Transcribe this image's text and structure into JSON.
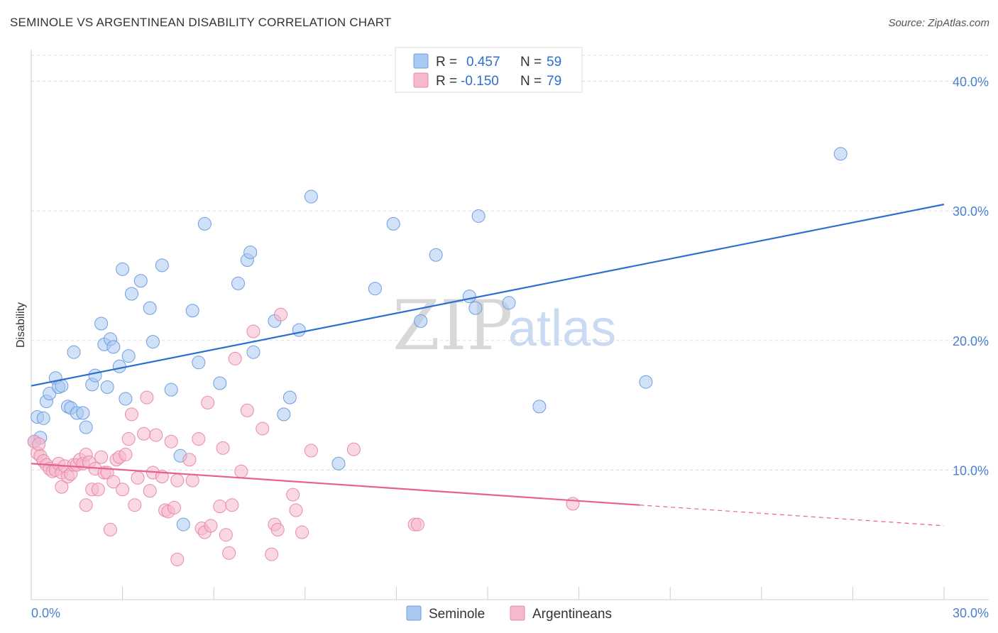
{
  "header": {
    "title": "SEMINOLE VS ARGENTINEAN DISABILITY CORRELATION CHART",
    "source": "Source: ZipAtlas.com"
  },
  "watermark": {
    "zip": "ZIP",
    "atlas": "atlas"
  },
  "legend": {
    "r_label": "R =",
    "n_label": "N =",
    "rows": [
      {
        "r": "0.457",
        "n": "59",
        "color": "#a9c8f2"
      },
      {
        "r": "-0.150",
        "n": "79",
        "color": "#f6b8cc"
      }
    ]
  },
  "bottom_legend": [
    {
      "label": "Seminole",
      "color": "#a9c8f2"
    },
    {
      "label": "Argentineans",
      "color": "#f6b8cc"
    }
  ],
  "colors": {
    "seminole_fill": "#a9c8f2",
    "seminole_stroke": "#6d9ee0",
    "seminole_line": "#2a6fd0",
    "argentinean_fill": "#f6b8cc",
    "argentinean_stroke": "#e88aa9",
    "argentinean_line": "#e8608f"
  },
  "chart_data": {
    "type": "scatter",
    "title": "SEMINOLE VS ARGENTINEAN DISABILITY CORRELATION CHART",
    "xlabel": "",
    "ylabel": "Disability",
    "xlim": [
      0,
      30
    ],
    "ylim": [
      0,
      42
    ],
    "x_tick_labels": [
      "0.0%",
      "30.0%"
    ],
    "y_ticks": [
      10,
      20,
      30,
      40
    ],
    "y_tick_labels": [
      "10.0%",
      "20.0%",
      "30.0%",
      "40.0%"
    ],
    "grid": true,
    "legend_position": "top-center",
    "series": [
      {
        "name": "Seminole",
        "r": 0.457,
        "n": 59,
        "trend": {
          "x": [
            0,
            30
          ],
          "y": [
            16.5,
            30.5
          ]
        },
        "points": [
          [
            0.1,
            12.2
          ],
          [
            0.2,
            14.1
          ],
          [
            0.4,
            14.0
          ],
          [
            0.5,
            15.3
          ],
          [
            0.6,
            15.9
          ],
          [
            0.8,
            17.1
          ],
          [
            0.9,
            16.4
          ],
          [
            1.0,
            16.5
          ],
          [
            1.2,
            14.9
          ],
          [
            1.3,
            14.8
          ],
          [
            1.4,
            19.1
          ],
          [
            1.5,
            14.4
          ],
          [
            1.7,
            14.4
          ],
          [
            1.8,
            13.3
          ],
          [
            2.0,
            16.6
          ],
          [
            2.1,
            17.3
          ],
          [
            2.3,
            21.3
          ],
          [
            2.4,
            19.7
          ],
          [
            2.5,
            16.4
          ],
          [
            2.6,
            20.1
          ],
          [
            2.7,
            19.5
          ],
          [
            2.9,
            18.0
          ],
          [
            3.0,
            25.5
          ],
          [
            3.1,
            15.5
          ],
          [
            3.2,
            18.8
          ],
          [
            3.3,
            23.6
          ],
          [
            3.6,
            24.6
          ],
          [
            3.9,
            22.5
          ],
          [
            4.0,
            19.9
          ],
          [
            4.3,
            25.8
          ],
          [
            4.6,
            16.2
          ],
          [
            4.9,
            11.1
          ],
          [
            5.0,
            5.8
          ],
          [
            5.3,
            22.3
          ],
          [
            5.5,
            18.3
          ],
          [
            5.7,
            29.0
          ],
          [
            6.2,
            16.7
          ],
          [
            6.8,
            24.4
          ],
          [
            7.1,
            26.2
          ],
          [
            7.2,
            26.8
          ],
          [
            7.3,
            19.1
          ],
          [
            8.0,
            21.5
          ],
          [
            8.3,
            14.3
          ],
          [
            8.5,
            15.6
          ],
          [
            8.8,
            20.8
          ],
          [
            9.2,
            31.1
          ],
          [
            10.1,
            10.5
          ],
          [
            11.3,
            24.0
          ],
          [
            11.9,
            29.0
          ],
          [
            12.8,
            21.5
          ],
          [
            13.3,
            26.6
          ],
          [
            14.4,
            23.4
          ],
          [
            14.6,
            22.5
          ],
          [
            14.7,
            29.6
          ],
          [
            15.7,
            22.9
          ],
          [
            16.7,
            14.9
          ],
          [
            20.2,
            16.8
          ],
          [
            26.6,
            34.4
          ],
          [
            0.3,
            12.5
          ]
        ]
      },
      {
        "name": "Argentineans",
        "r": -0.15,
        "n": 79,
        "trend": {
          "x": [
            0,
            20
          ],
          "y": [
            10.5,
            7.3
          ]
        },
        "trend_dashed": {
          "x": [
            20,
            30
          ],
          "y": [
            7.3,
            5.7
          ]
        },
        "points": [
          [
            0.1,
            12.2
          ],
          [
            0.2,
            11.3
          ],
          [
            0.3,
            11.1
          ],
          [
            0.4,
            10.7
          ],
          [
            0.5,
            10.4
          ],
          [
            0.6,
            10.1
          ],
          [
            0.7,
            9.9
          ],
          [
            0.8,
            10.0
          ],
          [
            0.9,
            10.5
          ],
          [
            1.0,
            9.8
          ],
          [
            1.0,
            8.7
          ],
          [
            1.1,
            10.3
          ],
          [
            1.2,
            9.5
          ],
          [
            1.3,
            9.7
          ],
          [
            1.4,
            10.4
          ],
          [
            1.5,
            10.4
          ],
          [
            1.6,
            10.8
          ],
          [
            1.7,
            10.5
          ],
          [
            1.8,
            11.2
          ],
          [
            1.8,
            7.3
          ],
          [
            1.9,
            10.6
          ],
          [
            2.0,
            8.5
          ],
          [
            2.1,
            10.1
          ],
          [
            2.2,
            8.5
          ],
          [
            2.3,
            11.0
          ],
          [
            2.4,
            9.8
          ],
          [
            2.5,
            9.8
          ],
          [
            2.6,
            5.4
          ],
          [
            2.7,
            9.1
          ],
          [
            2.8,
            10.8
          ],
          [
            2.9,
            11.0
          ],
          [
            3.0,
            8.5
          ],
          [
            3.1,
            11.2
          ],
          [
            3.2,
            12.4
          ],
          [
            3.3,
            14.3
          ],
          [
            3.4,
            7.3
          ],
          [
            3.5,
            9.4
          ],
          [
            3.7,
            12.8
          ],
          [
            3.8,
            15.6
          ],
          [
            3.9,
            8.4
          ],
          [
            4.0,
            9.8
          ],
          [
            4.1,
            12.7
          ],
          [
            4.3,
            9.5
          ],
          [
            4.4,
            6.9
          ],
          [
            4.5,
            6.8
          ],
          [
            4.6,
            12.2
          ],
          [
            4.7,
            7.1
          ],
          [
            4.8,
            9.2
          ],
          [
            4.8,
            3.1
          ],
          [
            5.2,
            10.8
          ],
          [
            5.3,
            9.2
          ],
          [
            5.5,
            12.4
          ],
          [
            5.6,
            5.5
          ],
          [
            5.7,
            5.2
          ],
          [
            5.8,
            15.2
          ],
          [
            5.9,
            5.7
          ],
          [
            6.2,
            7.2
          ],
          [
            6.3,
            11.7
          ],
          [
            6.4,
            5.0
          ],
          [
            6.5,
            3.6
          ],
          [
            6.6,
            7.3
          ],
          [
            6.7,
            18.6
          ],
          [
            6.9,
            9.9
          ],
          [
            7.1,
            14.6
          ],
          [
            7.3,
            20.7
          ],
          [
            7.6,
            13.2
          ],
          [
            7.9,
            3.5
          ],
          [
            8.0,
            5.8
          ],
          [
            8.1,
            5.4
          ],
          [
            8.2,
            22.0
          ],
          [
            8.6,
            8.1
          ],
          [
            8.7,
            6.9
          ],
          [
            8.9,
            5.2
          ],
          [
            9.2,
            11.5
          ],
          [
            10.6,
            11.6
          ],
          [
            12.6,
            5.8
          ],
          [
            12.7,
            5.8
          ],
          [
            17.8,
            7.4
          ],
          [
            0.25,
            12.0
          ]
        ]
      }
    ]
  }
}
